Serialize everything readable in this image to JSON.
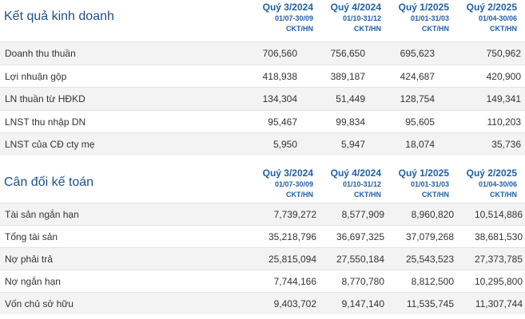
{
  "income": {
    "title": "Kết quả kinh doanh",
    "columns": [
      {
        "quarter": "Quý 3/2024",
        "dates": "01/07-30/09",
        "type": "CKT/HN"
      },
      {
        "quarter": "Quý 4/2024",
        "dates": "01/10-31/12",
        "type": "CKT/HN"
      },
      {
        "quarter": "Quý 1/2025",
        "dates": "01/01-31/03",
        "type": "CKT/HN"
      },
      {
        "quarter": "Quý 2/2025",
        "dates": "01/04-30/06",
        "type": "CKT/HN"
      }
    ],
    "rows": [
      {
        "label": "Doanh thu thuần",
        "values": [
          "706,560",
          "756,650",
          "695,623",
          "750,962"
        ]
      },
      {
        "label": "Lợi nhuận gộp",
        "values": [
          "418,938",
          "389,187",
          "424,687",
          "420,900"
        ]
      },
      {
        "label": "LN thuần từ HĐKD",
        "values": [
          "134,304",
          "51,449",
          "128,754",
          "149,341"
        ]
      },
      {
        "label": "LNST thu nhập DN",
        "values": [
          "95,467",
          "99,834",
          "95,605",
          "110,203"
        ]
      },
      {
        "label": "LNST của CĐ cty mẹ",
        "values": [
          "5,950",
          "5,947",
          "18,074",
          "35,736"
        ]
      }
    ]
  },
  "balance": {
    "title": "Cân đối kế toán",
    "columns": [
      {
        "quarter": "Quý 3/2024",
        "dates": "01/07-30/09",
        "type": "CKT/HN"
      },
      {
        "quarter": "Quý 4/2024",
        "dates": "01/10-31/12",
        "type": "CKT/HN"
      },
      {
        "quarter": "Quý 1/2025",
        "dates": "01/01-31/03",
        "type": "CKT/HN"
      },
      {
        "quarter": "Quý 2/2025",
        "dates": "01/04-30/06",
        "type": "CKT/HN"
      }
    ],
    "rows": [
      {
        "label": "Tài sản ngắn hạn",
        "values": [
          "7,739,272",
          "8,577,909",
          "8,960,820",
          "10,514,886"
        ]
      },
      {
        "label": "Tổng tài sản",
        "values": [
          "35,218,796",
          "36,697,325",
          "37,079,268",
          "38,681,530"
        ]
      },
      {
        "label": "Nợ phải trả",
        "values": [
          "25,815,094",
          "27,550,184",
          "25,543,523",
          "27,373,785"
        ]
      },
      {
        "label": "Nợ ngắn hạn",
        "values": [
          "7,744,166",
          "8,770,780",
          "8,812,500",
          "10,295,800"
        ]
      },
      {
        "label": "Vốn chủ sở hữu",
        "values": [
          "9,403,702",
          "9,147,140",
          "11,535,745",
          "11,307,744"
        ]
      }
    ]
  }
}
